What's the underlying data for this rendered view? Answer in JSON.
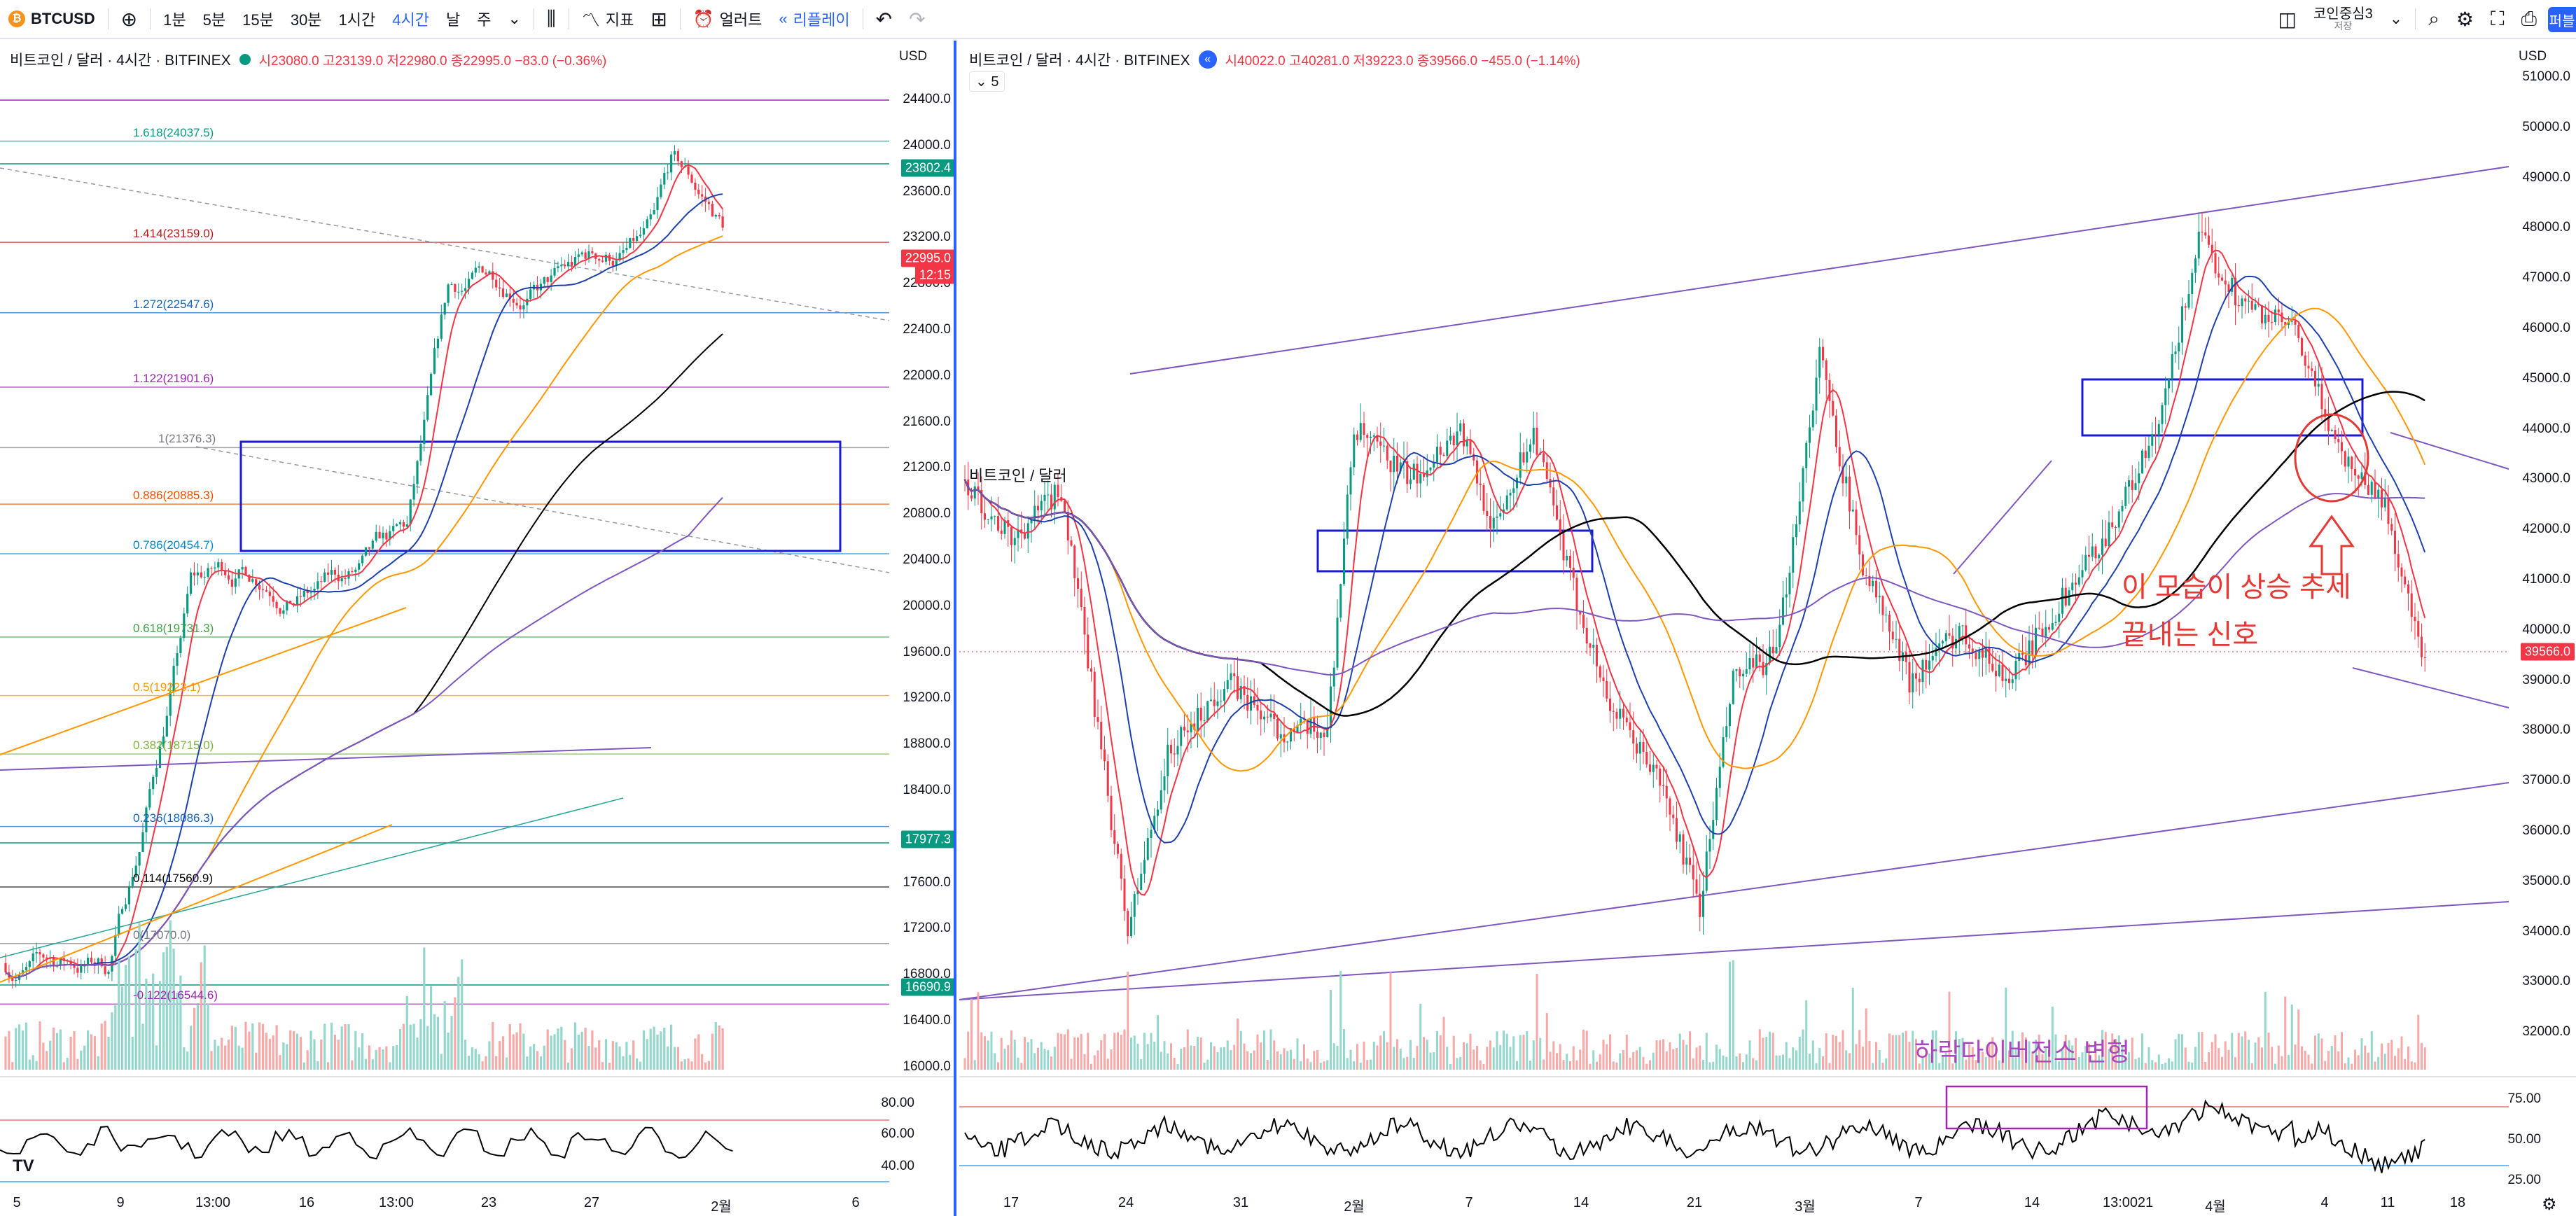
{
  "toolbar": {
    "symbol": "BTCUSD",
    "add_icon": "plus-circle-icon",
    "intervals": [
      "1분",
      "5분",
      "15분",
      "30분",
      "1시간",
      "4시간",
      "날",
      "주"
    ],
    "active_interval": "4시간",
    "chart_type_icon": "candles-icon",
    "indicators_label": "지표",
    "alert_label": "얼러트",
    "replay_label": "리플레이",
    "layout_name": "코인중심3",
    "layout_sub": "저장",
    "publish_label": "퍼블"
  },
  "left_chart": {
    "title": "비트코인 / 달러 · 4시간 · BITFINEX",
    "ohlc": "시23080.0 고23139.0 저22980.0 종22995.0 −83.0 (−0.36%)",
    "currency": "USD",
    "price_labels": [
      "24400.0",
      "24000.0",
      "23600.0",
      "23200.0",
      "22800.0",
      "22400.0",
      "22000.0",
      "21600.0",
      "21200.0",
      "20800.0",
      "20400.0",
      "20000.0",
      "19600.0",
      "19200.0",
      "18800.0",
      "18400.0",
      "18000.0",
      "17600.0",
      "17200.0",
      "16800.0",
      "16400.0",
      "16000.0"
    ],
    "tags": [
      {
        "text": "23802.4",
        "color": "#089981"
      },
      {
        "text": "22995.0",
        "color": "#f23645"
      },
      {
        "text": "12:15",
        "color": "#f23645"
      },
      {
        "text": "17977.3",
        "color": "#089981"
      },
      {
        "text": "16690.9",
        "color": "#089981"
      }
    ],
    "fib_levels": [
      {
        "label": "1.618(24037.5)",
        "color": "#089981"
      },
      {
        "label": "1.414(23159.0)",
        "color": "#b71c1c"
      },
      {
        "label": "1.272(22547.6)",
        "color": "#1565c0"
      },
      {
        "label": "1.122(21901.6)",
        "color": "#9c27b0"
      },
      {
        "label": "1(21376.3)",
        "color": "#787b86"
      },
      {
        "label": "0.886(20885.3)",
        "color": "#e65100"
      },
      {
        "label": "0.786(20454.7)",
        "color": "#0288d1"
      },
      {
        "label": "0.618(19731.3)",
        "color": "#43a047"
      },
      {
        "label": "0.5(19223.1)",
        "color": "#ff9800"
      },
      {
        "label": "0.382(18715.0)",
        "color": "#7cb342"
      },
      {
        "label": "0.236(18086.3)",
        "color": "#1565c0"
      },
      {
        "label": "0.114(17560.9)",
        "color": "#000000"
      },
      {
        "label": "0(17070.0)",
        "color": "#787b86"
      },
      {
        "label": "-0.122(16544.6)",
        "color": "#9c27b0"
      }
    ],
    "rsi_labels": [
      "80.00",
      "60.00",
      "40.00"
    ],
    "time_labels": [
      "5",
      "9",
      "13:00",
      "16",
      "13:00",
      "23",
      "27",
      "2월",
      "6"
    ]
  },
  "right_chart": {
    "title": "비트코인 / 달러 · 4시간 · BITFINEX",
    "ohlc": "시40022.0 고40281.0 저39223.0 종39566.0 −455.0 (−1.14%)",
    "indicator_toggle": "5",
    "inner_title": "비트코인 / 달러",
    "currency": "USD",
    "price_labels": [
      "51000.0",
      "50000.0",
      "49000.0",
      "48000.0",
      "47000.0",
      "46000.0",
      "45000.0",
      "44000.0",
      "43000.0",
      "42000.0",
      "41000.0",
      "40000.0",
      "39000.0",
      "38000.0",
      "37000.0",
      "36000.0",
      "35000.0",
      "34000.0",
      "33000.0",
      "32000.0"
    ],
    "tags": [
      {
        "text": "39566.0",
        "color": "#f23645"
      }
    ],
    "annotation_line1": "이 모습이 상승 추세",
    "annotation_line2": "끝내는 신호",
    "divergence_label": "하락다이버전스 변형",
    "rsi_labels": [
      "75.00",
      "50.00",
      "25.00"
    ],
    "time_labels": [
      "17",
      "24",
      "31",
      "2월",
      "7",
      "14",
      "21",
      "3월",
      "7",
      "14",
      "21",
      "13:00",
      "4월",
      "4",
      "11",
      "18"
    ]
  }
}
